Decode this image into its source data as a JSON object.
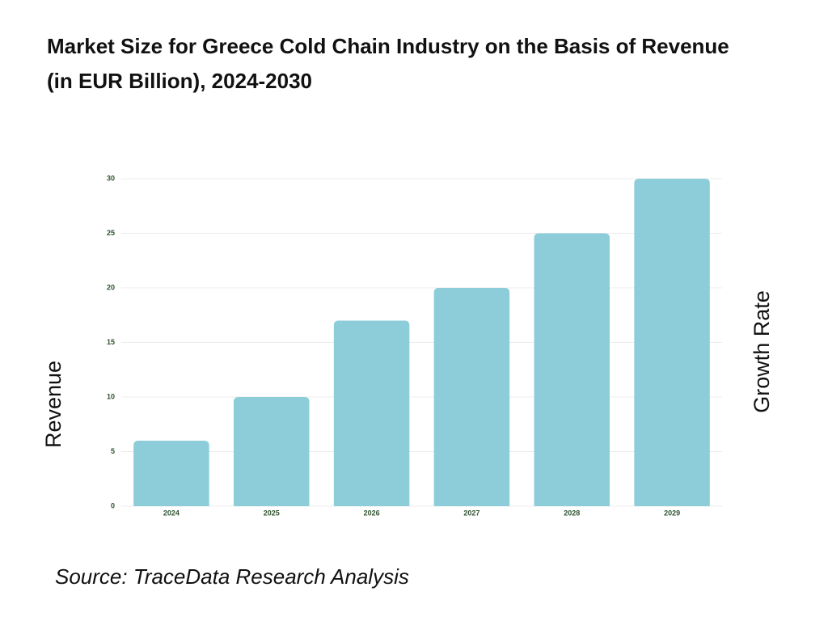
{
  "chart_data": {
    "type": "bar",
    "title": "Market Size for Greece Cold Chain Industry on the Basis of Revenue (in EUR Billion), 2024-2030",
    "y_label": "Revenue",
    "y2_label": "Growth Rate",
    "source": "Source: TraceData Research Analysis",
    "categories": [
      "2024",
      "2025",
      "2026",
      "2027",
      "2028",
      "2029"
    ],
    "values": [
      6,
      10,
      17,
      20,
      25,
      30
    ],
    "color": "#8dcdd9",
    "ylim": [
      0,
      30
    ],
    "yticks": [
      0,
      5,
      10,
      15,
      20,
      25,
      30
    ],
    "grid": true
  }
}
